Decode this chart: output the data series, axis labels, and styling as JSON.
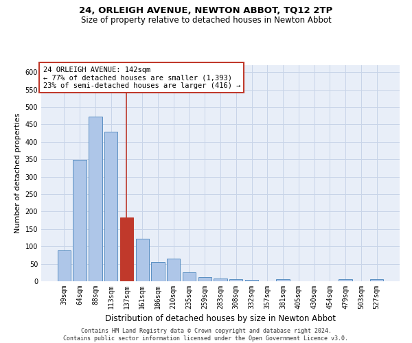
{
  "title": "24, ORLEIGH AVENUE, NEWTON ABBOT, TQ12 2TP",
  "subtitle": "Size of property relative to detached houses in Newton Abbot",
  "xlabel": "Distribution of detached houses by size in Newton Abbot",
  "ylabel": "Number of detached properties",
  "categories": [
    "39sqm",
    "64sqm",
    "88sqm",
    "113sqm",
    "137sqm",
    "161sqm",
    "186sqm",
    "210sqm",
    "235sqm",
    "259sqm",
    "283sqm",
    "308sqm",
    "332sqm",
    "357sqm",
    "381sqm",
    "405sqm",
    "430sqm",
    "454sqm",
    "479sqm",
    "503sqm",
    "527sqm"
  ],
  "values": [
    88,
    348,
    472,
    430,
    183,
    122,
    55,
    65,
    25,
    12,
    8,
    5,
    3,
    0,
    5,
    0,
    0,
    0,
    5,
    0,
    5
  ],
  "highlight_index": 4,
  "bar_color": "#aec6e8",
  "bar_edge_color": "#5a8fc2",
  "highlight_bar_color": "#c0392b",
  "highlight_line_color": "#c0392b",
  "annotation_box_color": "#ffffff",
  "annotation_box_edge": "#c0392b",
  "annotation_text": "24 ORLEIGH AVENUE: 142sqm\n← 77% of detached houses are smaller (1,393)\n23% of semi-detached houses are larger (416) →",
  "annotation_fontsize": 7.5,
  "ylim": [
    0,
    620
  ],
  "yticks": [
    0,
    50,
    100,
    150,
    200,
    250,
    300,
    350,
    400,
    450,
    500,
    550,
    600
  ],
  "grid_color": "#c8d4e8",
  "background_color": "#e8eef8",
  "footer": "Contains HM Land Registry data © Crown copyright and database right 2024.\nContains public sector information licensed under the Open Government Licence v3.0.",
  "title_fontsize": 9.5,
  "subtitle_fontsize": 8.5,
  "xlabel_fontsize": 8.5,
  "ylabel_fontsize": 8.0,
  "tick_fontsize": 7.0,
  "footer_fontsize": 6.0
}
